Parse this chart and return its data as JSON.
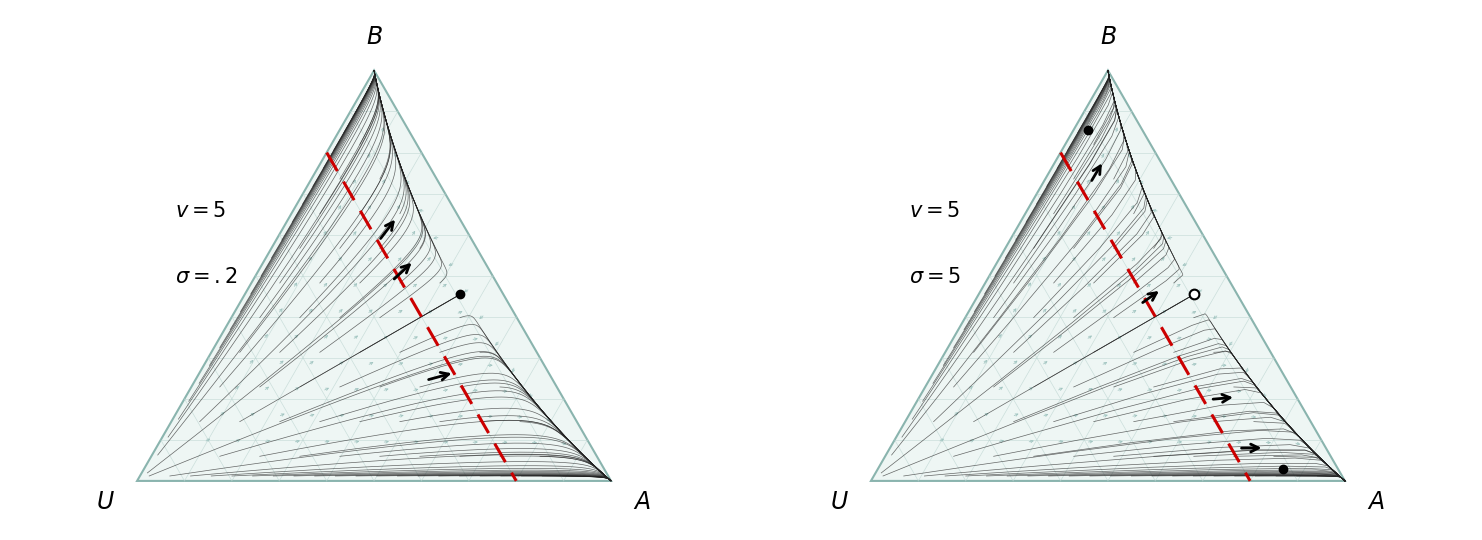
{
  "v": 5,
  "sigma1": 0.2,
  "sigma2": 5.0,
  "bg_color": "#ffffff",
  "tri_edge_color": "#8ab4ae",
  "tri_fill_color": "#eef6f4",
  "grid_color": "#b8d2ce",
  "traj_color": "#222222",
  "vec_color": "#a0c4c0",
  "red_color": "#cc0000",
  "label_v1": "$v = 5$",
  "label_s1": "$\\sigma = .2$",
  "label_v2": "$v = 5$",
  "label_s2": "$\\sigma = 5$",
  "n_grid": 10,
  "n_vf": 15,
  "traj_lw": 0.5,
  "traj_alpha": 0.68
}
